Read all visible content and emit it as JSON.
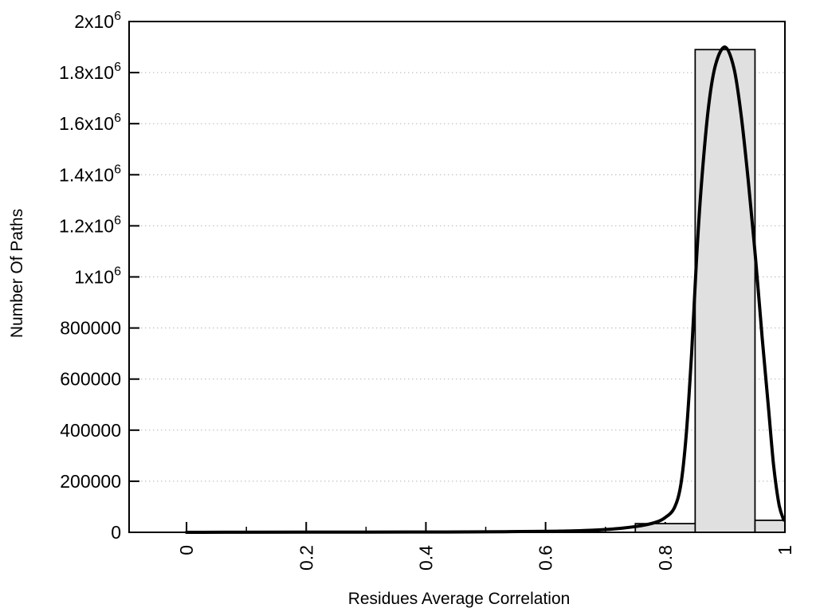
{
  "chart_data": {
    "type": "bar",
    "subtype": "histogram_with_fit_curve",
    "title": "",
    "xlabel": "Residues Average Correlation",
    "ylabel": "Number Of Paths",
    "xlim": [
      -0.096,
      1.0
    ],
    "ylim": [
      0,
      2000000
    ],
    "grid": "y-dotted",
    "legend": "none",
    "x_ticks": [
      {
        "value": 0,
        "label": "0"
      },
      {
        "value": 0.2,
        "label": "0.2"
      },
      {
        "value": 0.4,
        "label": "0.4"
      },
      {
        "value": 0.6,
        "label": "0.6"
      },
      {
        "value": 0.8,
        "label": "0.8"
      },
      {
        "value": 1,
        "label": "1"
      }
    ],
    "x_minor_ticks": [
      0.1,
      0.3,
      0.5,
      0.7,
      0.9
    ],
    "y_ticks": [
      {
        "value": 0,
        "label": "0"
      },
      {
        "value": 200000,
        "label": "200000"
      },
      {
        "value": 400000,
        "label": "400000"
      },
      {
        "value": 600000,
        "label": "600000"
      },
      {
        "value": 800000,
        "label": "800000"
      },
      {
        "value": 1000000,
        "label": "1x10^6"
      },
      {
        "value": 1200000,
        "label": "1.2x10^6"
      },
      {
        "value": 1400000,
        "label": "1.4x10^6"
      },
      {
        "value": 1600000,
        "label": "1.6x10^6"
      },
      {
        "value": 1800000,
        "label": "1.8x10^6"
      },
      {
        "value": 2000000,
        "label": "2x10^6"
      }
    ],
    "grid_y_values": [
      200000,
      400000,
      600000,
      800000,
      1000000,
      1200000,
      1400000,
      1600000,
      1800000
    ],
    "bars": [
      {
        "x0": 0.75,
        "x1": 0.85,
        "value": 34000
      },
      {
        "x0": 0.85,
        "x1": 0.95,
        "value": 1890000
      },
      {
        "x0": 0.95,
        "x1": 1.0,
        "value": 47000
      }
    ],
    "curve_points": [
      [
        0.0,
        0
      ],
      [
        0.1,
        300
      ],
      [
        0.2,
        500
      ],
      [
        0.3,
        800
      ],
      [
        0.4,
        1200
      ],
      [
        0.5,
        2000
      ],
      [
        0.56,
        3000
      ],
      [
        0.62,
        4500
      ],
      [
        0.66,
        6500
      ],
      [
        0.7,
        11000
      ],
      [
        0.73,
        17000
      ],
      [
        0.76,
        26000
      ],
      [
        0.785,
        40000
      ],
      [
        0.8,
        58000
      ],
      [
        0.815,
        95000
      ],
      [
        0.826,
        185000
      ],
      [
        0.835,
        380000
      ],
      [
        0.844,
        700000
      ],
      [
        0.852,
        1060000
      ],
      [
        0.86,
        1350000
      ],
      [
        0.872,
        1660000
      ],
      [
        0.884,
        1830000
      ],
      [
        0.9,
        1900000
      ],
      [
        0.915,
        1815000
      ],
      [
        0.927,
        1630000
      ],
      [
        0.939,
        1370000
      ],
      [
        0.951,
        1070000
      ],
      [
        0.962,
        760000
      ],
      [
        0.972,
        500000
      ],
      [
        0.981,
        265000
      ],
      [
        0.99,
        110000
      ],
      [
        0.998,
        48000
      ]
    ],
    "colors": {
      "background": "#ffffff",
      "bar_fill": "#e0e0e0",
      "bar_stroke": "#000000",
      "curve": "#000000",
      "grid": "#b5b5b5",
      "axis": "#000000",
      "text": "#000000"
    }
  }
}
